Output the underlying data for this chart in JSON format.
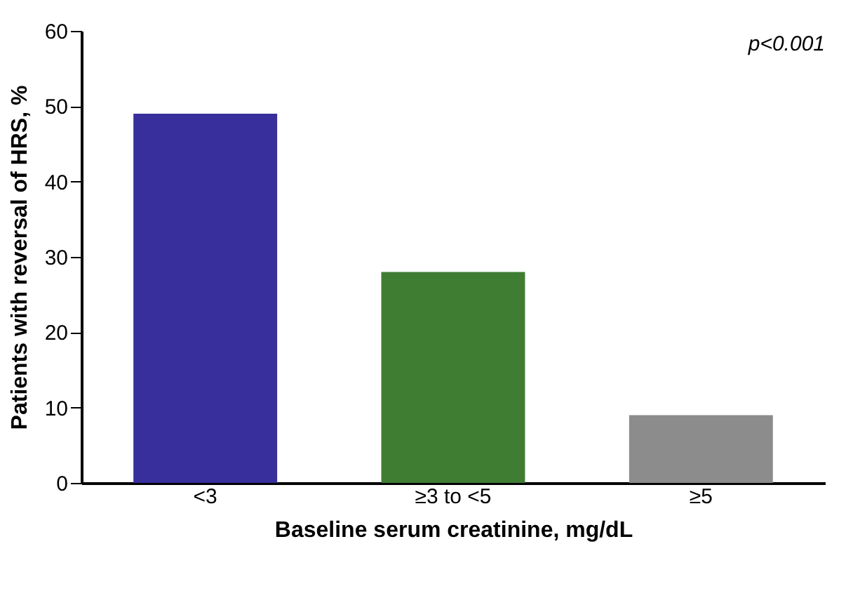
{
  "chart_data": {
    "type": "bar",
    "xlabel": "Baseline serum creatinine, mg/dL",
    "ylabel": "Patients with reversal of HRS, %",
    "categories": [
      "<3",
      "≥3 to <5",
      "≥5"
    ],
    "values": [
      49,
      28,
      9
    ],
    "colors": [
      "#382e9c",
      "#3f7d33",
      "#8c8c8c"
    ],
    "ylim": [
      0,
      60
    ],
    "yticks": [
      0,
      10,
      20,
      30,
      40,
      50,
      60
    ],
    "grid": false,
    "annotations": [
      "p<0.001"
    ]
  }
}
